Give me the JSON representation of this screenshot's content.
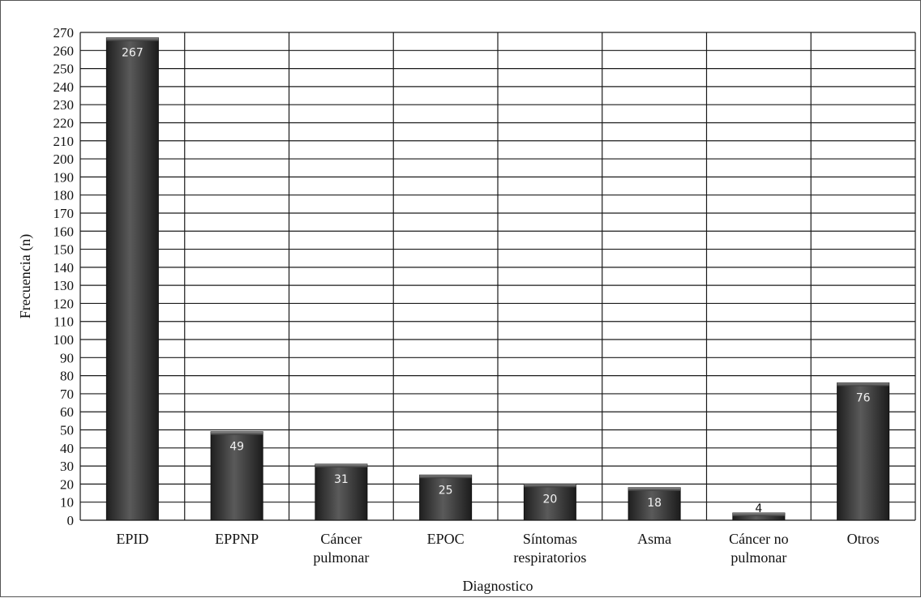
{
  "chart_data": {
    "type": "bar",
    "title": "",
    "xlabel": "Diagnostico",
    "ylabel": "Frecuencia (n)",
    "ylim": [
      0,
      270
    ],
    "ytick_step": 10,
    "grid": true,
    "legend": "none",
    "categories": [
      [
        "EPID"
      ],
      [
        "EPPNP"
      ],
      [
        "Cáncer",
        "pulmonar"
      ],
      [
        "EPOC"
      ],
      [
        "Síntomas",
        "respiratorios"
      ],
      [
        "Asma"
      ],
      [
        "Cáncer no",
        "pulmonar"
      ],
      [
        "Otros"
      ]
    ],
    "values": [
      267,
      49,
      31,
      25,
      20,
      18,
      4,
      76
    ],
    "data_labels": [
      "267",
      "49",
      "31",
      "25",
      "20",
      "18",
      "4",
      "76"
    ],
    "colors": {
      "bar_dark": "#2b2b2b",
      "bar_light": "#6a6a6a",
      "grid": "#1a1a1a",
      "label_on_bar": "#f2f2f2",
      "label_above_bar": "#111111"
    }
  }
}
